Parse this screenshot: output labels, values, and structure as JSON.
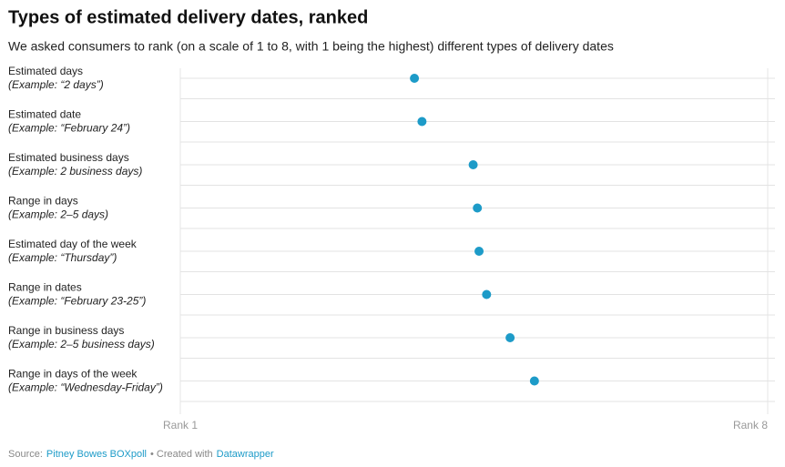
{
  "chart_data": {
    "type": "dot",
    "title": "Types of estimated delivery dates, ranked",
    "subtitle": "We asked consumers to rank (on a scale of 1 to 8, with 1 being the highest) different types of delivery dates",
    "categories": [
      "Estimated days",
      "Estimated date",
      "Estimated business days",
      "Range in days",
      "Estimated day of the week",
      "Range in dates",
      "Range in business days",
      "Range in days of the week"
    ],
    "examples": [
      "(Example: “2 days”)",
      "(Example: “February 24”)",
      "(Example: 2 business days)",
      "(Example: 2–5 days)",
      "(Example: “Thursday”)",
      "(Example: “February 23-25”)",
      "(Example: 2–5 business days)",
      "(Example: “Wednesday-Friday”)"
    ],
    "values": [
      3.79,
      3.88,
      4.49,
      4.54,
      4.56,
      4.65,
      4.93,
      5.22
    ],
    "color": "#1d9bc8",
    "xlim": [
      1,
      8
    ],
    "xticks": [
      {
        "value": 1,
        "label": "Rank 1"
      },
      {
        "value": 8,
        "label": "Rank 8"
      }
    ],
    "grid": true,
    "footer": [
      "Source:",
      "Pitney Bowes BOXpoll",
      "• Created with",
      "Datawrapper"
    ]
  }
}
